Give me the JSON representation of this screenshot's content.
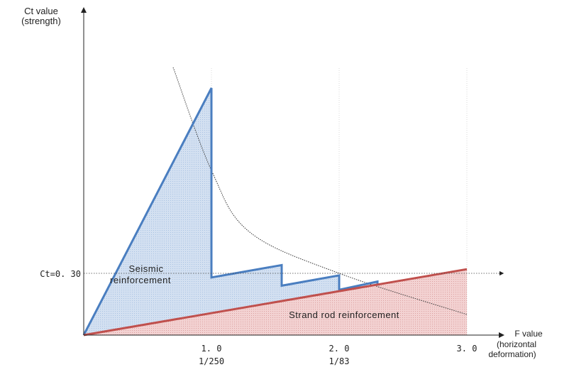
{
  "chart_data": {
    "type": "area",
    "axes": {
      "y_label_line1": "Ct value",
      "y_label_line2": "(strength)",
      "x_label_line1": "F value",
      "x_label_line2": "(horizontal",
      "x_label_line3": "deformation)",
      "xlim": [
        0,
        3.0
      ],
      "ylim": [
        0,
        1.3
      ]
    },
    "x_ticks": [
      {
        "value": 1.0,
        "label": "1. 0",
        "sub": "1/250"
      },
      {
        "value": 2.0,
        "label": "2. 0",
        "sub": "1/83"
      },
      {
        "value": 3.0,
        "label": "3. 0",
        "sub": ""
      }
    ],
    "reference_line": {
      "label": "Ct=0. 30",
      "y": 0.3
    },
    "series": [
      {
        "name": "Seismic reinforcement",
        "label_line1": "Seismic",
        "label_line2": "reinforcement",
        "color": "#4a7ec0",
        "fill": "#c9d9ee",
        "points": [
          [
            0.0,
            0.0
          ],
          [
            1.0,
            1.2
          ],
          [
            1.0,
            0.28
          ],
          [
            1.55,
            0.34
          ],
          [
            1.55,
            0.24
          ],
          [
            2.0,
            0.29
          ],
          [
            2.0,
            0.22
          ],
          [
            2.3,
            0.26
          ],
          [
            2.3,
            0.24
          ]
        ]
      },
      {
        "name": "Strand rod reinforcement",
        "label_line1": "Strand rod reinforcement",
        "color": "#c0504d",
        "fill": "#f0c8c8",
        "points": [
          [
            0.0,
            0.0
          ],
          [
            3.0,
            0.32
          ]
        ]
      }
    ],
    "curve": {
      "style": "dotted",
      "color": "#333333",
      "points": [
        [
          0.7,
          1.3
        ],
        [
          1.0,
          0.8
        ],
        [
          1.3,
          0.5
        ],
        [
          2.0,
          0.3
        ],
        [
          3.0,
          0.1
        ]
      ]
    },
    "grid": "dotted-verticals"
  }
}
